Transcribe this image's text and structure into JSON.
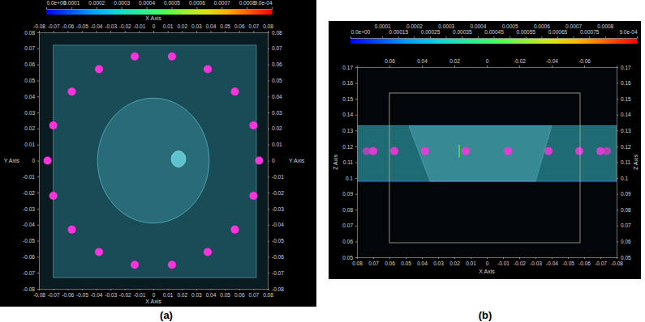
{
  "chart_data": [
    {
      "type": "scatter",
      "title": "(a)",
      "x_label": "X Axis",
      "y_label": "Y Axis",
      "x": [
        -0.013,
        0.013,
        0.038,
        0.057,
        0.07,
        0.074,
        0.07,
        0.057,
        0.038,
        0.013,
        -0.013,
        -0.038,
        -0.057,
        -0.07,
        -0.074,
        -0.07,
        -0.057,
        -0.038
      ],
      "values": [
        0.065,
        0.065,
        0.057,
        0.043,
        0.022,
        0,
        -0.022,
        -0.043,
        -0.057,
        -0.065,
        -0.065,
        -0.057,
        -0.043,
        -0.022,
        0,
        0.022,
        0.043,
        0.057
      ],
      "color": "#ff33dd",
      "xlim": [
        -0.08,
        0.08
      ],
      "xticks": [
        -0.08,
        -0.07,
        -0.06,
        -0.05,
        -0.04,
        -0.03,
        -0.02,
        -0.01,
        0,
        0.01,
        0.02,
        0.03,
        0.04,
        0.05,
        0.06,
        0.07,
        0.08
      ],
      "ylim": [
        -0.08,
        0.08
      ],
      "yticks": [
        -0.08,
        -0.07,
        -0.06,
        -0.05,
        -0.04,
        -0.03,
        -0.02,
        -0.01,
        0,
        0.01,
        0.02,
        0.03,
        0.04,
        0.05,
        0.06,
        0.07,
        0.08
      ],
      "colorbar": {
        "range": [
          0,
          0.0009
        ],
        "ticks": [
          {
            "value": 0,
            "label": "0.0e+00"
          },
          0.0001,
          0.0002,
          0.0003,
          0.0004,
          0.0005,
          0.0006,
          0.0007,
          0.0008,
          {
            "value": 0.0009,
            "label": "9.0e-04"
          }
        ]
      },
      "box_x": [
        -0.07,
        0.072
      ],
      "box_y": [
        -0.073,
        0.072
      ],
      "disk": {
        "x": 0,
        "y": 0,
        "r": 0.039
      },
      "inclusion": {
        "x": 0.0176,
        "y": 0.001,
        "r": 0.005
      }
    },
    {
      "type": "scatter",
      "title": "(b)",
      "x_label": "X Axis",
      "y_label": "Z Axis",
      "x": [
        -0.013,
        0.013,
        0.038,
        0.057,
        0.07,
        0.074,
        0.07,
        0.057,
        0.038,
        0.013,
        -0.013,
        -0.038,
        -0.057,
        -0.07,
        -0.074,
        -0.07,
        -0.057,
        -0.038
      ],
      "values": [
        0.117,
        0.117,
        0.117,
        0.117,
        0.117,
        0.117,
        0.117,
        0.117,
        0.117,
        0.117,
        0.117,
        0.117,
        0.117,
        0.117,
        0.117,
        0.117,
        0.117,
        0.117
      ],
      "color": "#ff33dd",
      "xlim": [
        0.08,
        -0.08
      ],
      "xticks": [
        0.08,
        0.07,
        0.06,
        0.05,
        0.04,
        0.03,
        0.02,
        0.01,
        0,
        -0.01,
        -0.02,
        -0.03,
        -0.04,
        -0.05,
        -0.06,
        -0.07,
        -0.08
      ],
      "x2ticks": [
        0.06,
        0.04,
        0.02,
        0,
        -0.02,
        -0.04,
        -0.06
      ],
      "ylim": [
        0.05,
        0.17
      ],
      "yticks": [
        0.05,
        0.06,
        0.07,
        0.08,
        0.09,
        0.1,
        0.11,
        0.12,
        0.13,
        0.14,
        0.15,
        0.16,
        0.17
      ],
      "colorbar": {
        "range": [
          0,
          0.0009
        ],
        "ticks": [
          {
            "value": 0,
            "label": "0.0e+00"
          },
          0.0001,
          0.00015,
          0.0002,
          0.00025,
          0.0003,
          0.00035,
          0.0004,
          0.00045,
          0.0005,
          0.00055,
          0.0006,
          0.00065,
          0.0007,
          0.00075,
          0.0008,
          {
            "value": 0.0009,
            "label": "9.0e-04"
          }
        ]
      },
      "slab_z": [
        0.098,
        0.133
      ],
      "cone_z": [
        0.098,
        0.133
      ],
      "cone_top_x": [
        0.048,
        -0.04
      ],
      "cone_bottom_x": [
        0.035,
        -0.03
      ],
      "inclusion": {
        "x": 0.017,
        "z": [
          0.113,
          0.121
        ]
      }
    }
  ]
}
